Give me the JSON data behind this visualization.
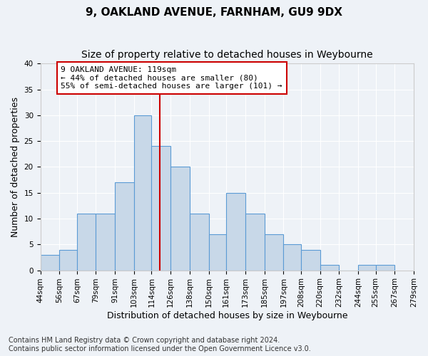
{
  "title": "9, OAKLAND AVENUE, FARNHAM, GU9 9DX",
  "subtitle": "Size of property relative to detached houses in Weybourne",
  "xlabel": "Distribution of detached houses by size in Weybourne",
  "ylabel": "Number of detached properties",
  "bar_values": [
    3,
    4,
    11,
    11,
    17,
    30,
    24,
    20,
    11,
    7,
    15,
    11,
    7,
    5,
    4,
    1,
    0,
    1,
    1
  ],
  "bin_edges": [
    44,
    56,
    67,
    79,
    91,
    103,
    114,
    126,
    138,
    150,
    161,
    173,
    185,
    197,
    208,
    220,
    232,
    244,
    255,
    267
  ],
  "tick_labels": [
    "44sqm",
    "56sqm",
    "67sqm",
    "79sqm",
    "91sqm",
    "103sqm",
    "114sqm",
    "126sqm",
    "138sqm",
    "150sqm",
    "161sqm",
    "173sqm",
    "185sqm",
    "197sqm",
    "208sqm",
    "220sqm",
    "232sqm",
    "244sqm",
    "255sqm",
    "267sqm",
    "279sqm"
  ],
  "tick_positions": [
    44,
    56,
    67,
    79,
    91,
    103,
    114,
    126,
    138,
    150,
    161,
    173,
    185,
    197,
    208,
    220,
    232,
    244,
    255,
    267,
    279
  ],
  "bar_color": "#c8d8e8",
  "bar_edge_color": "#5b9bd5",
  "vline_x": 119,
  "vline_color": "#cc0000",
  "annotation_text": "9 OAKLAND AVENUE: 119sqm\n← 44% of detached houses are smaller (80)\n55% of semi-detached houses are larger (101) →",
  "annotation_box_color": "#ffffff",
  "annotation_box_edge_color": "#cc0000",
  "ylim": [
    0,
    40
  ],
  "yticks": [
    0,
    5,
    10,
    15,
    20,
    25,
    30,
    35,
    40
  ],
  "footnote1": "Contains HM Land Registry data © Crown copyright and database right 2024.",
  "footnote2": "Contains public sector information licensed under the Open Government Licence v3.0.",
  "background_color": "#eef2f7",
  "grid_color": "#ffffff",
  "title_fontsize": 11,
  "subtitle_fontsize": 10,
  "axis_label_fontsize": 9,
  "tick_fontsize": 7.5,
  "annotation_fontsize": 8,
  "footnote_fontsize": 7
}
